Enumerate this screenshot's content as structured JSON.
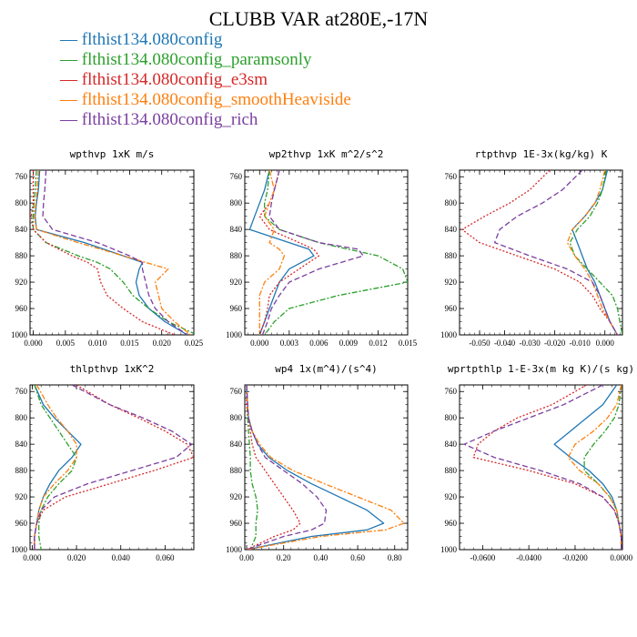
{
  "title": "CLUBB VAR at280E,-17N",
  "legend": [
    {
      "label": "flthist134.080config",
      "color": "#1f77b4"
    },
    {
      "label": "flthist134.080config_paramsonly",
      "color": "#2ca02c"
    },
    {
      "label": "flthist134.080config_e3sm",
      "color": "#d62728"
    },
    {
      "label": "flthist134.080config_smoothHeaviside",
      "color": "#ff7f0e"
    },
    {
      "label": "flthist134.080config_rich",
      "color": "#7b3fa0"
    }
  ],
  "chart_data": [
    {
      "type": "line",
      "title": "wpthvp  1xK m/s",
      "xlim": [
        -0.0005,
        0.025
      ],
      "ylim": [
        1000,
        750
      ],
      "xticks": [
        "0.000",
        "0.005",
        "0.010",
        "0.015",
        "0.020",
        "0.025"
      ],
      "yticks": [
        "760",
        "800",
        "840",
        "880",
        "920",
        "960",
        "1000"
      ],
      "y": [
        750,
        780,
        800,
        820,
        840,
        860,
        880,
        890,
        900,
        920,
        940,
        960,
        980,
        1000
      ],
      "series": [
        {
          "color": "#1f77b4",
          "dash": "none",
          "values": [
            0.001,
            0.0008,
            0.0005,
            0.0003,
            0.0005,
            0.008,
            0.014,
            0.017,
            0.0165,
            0.016,
            0.0165,
            0.018,
            0.0205,
            0.024
          ]
        },
        {
          "color": "#2ca02c",
          "dash": "6 2 2 2",
          "values": [
            0.0005,
            0.0003,
            0.0001,
            0.0,
            0.0,
            0.002,
            0.007,
            0.01,
            0.012,
            0.014,
            0.0155,
            0.018,
            0.021,
            0.0255
          ]
        },
        {
          "color": "#d62728",
          "dash": "2 2",
          "values": [
            0.0,
            0.0,
            0.0,
            -0.0003,
            0.0,
            0.002,
            0.006,
            0.0085,
            0.01,
            0.0105,
            0.0115,
            0.014,
            0.017,
            0.022
          ]
        },
        {
          "color": "#ff7f0e",
          "dash": "6 2 2 2",
          "values": [
            0.0008,
            0.0006,
            0.0004,
            0.0002,
            0.0005,
            0.007,
            0.014,
            0.0175,
            0.021,
            0.019,
            0.0195,
            0.02,
            0.022,
            0.0245
          ]
        },
        {
          "color": "#7b3fa0",
          "dash": "6 3",
          "values": [
            0.002,
            0.0018,
            0.0016,
            0.0015,
            0.003,
            0.01,
            0.015,
            0.017,
            0.017,
            0.0175,
            0.018,
            0.019,
            0.021,
            0.024
          ]
        }
      ]
    },
    {
      "type": "line",
      "title": "wp2thvp  1xK m^2/s^2",
      "xlim": [
        -0.0015,
        0.015
      ],
      "ylim": [
        1000,
        750
      ],
      "xticks": [
        "0.000",
        "0.003",
        "0.006",
        "0.009",
        "0.012",
        "0.015"
      ],
      "yticks": [
        "760",
        "800",
        "840",
        "880",
        "920",
        "960",
        "1000"
      ],
      "y": [
        750,
        780,
        800,
        820,
        840,
        860,
        870,
        880,
        900,
        920,
        940,
        960,
        980,
        1000
      ],
      "series": [
        {
          "color": "#1f77b4",
          "dash": "none",
          "values": [
            0.001,
            0.0005,
            0.0,
            -0.0005,
            -0.001,
            0.003,
            0.005,
            0.0055,
            0.003,
            0.002,
            0.0015,
            0.001,
            0.0005,
            0.0
          ]
        },
        {
          "color": "#2ca02c",
          "dash": "6 2 2 2",
          "values": [
            0.001,
            0.0008,
            0.0005,
            0.0005,
            0.002,
            0.006,
            0.009,
            0.012,
            0.0145,
            0.015,
            0.008,
            0.003,
            0.0015,
            0.0005
          ]
        },
        {
          "color": "#d62728",
          "dash": "2 2",
          "values": [
            0.002,
            0.0015,
            0.001,
            0.0,
            0.001,
            0.004,
            0.0055,
            0.006,
            0.004,
            0.002,
            0.001,
            0.0008,
            0.0005,
            0.0
          ]
        },
        {
          "color": "#ff7f0e",
          "dash": "6 2 2 2",
          "values": [
            0.001,
            0.0015,
            0.001,
            0.0005,
            0.0015,
            0.001,
            0.002,
            0.0025,
            0.002,
            0.0005,
            0.0,
            0.0,
            0.0,
            0.0
          ]
        },
        {
          "color": "#7b3fa0",
          "dash": "6 3",
          "values": [
            0.002,
            0.0015,
            0.0012,
            0.001,
            0.002,
            0.006,
            0.01,
            0.0105,
            0.006,
            0.003,
            0.002,
            0.0012,
            0.0008,
            0.0003
          ]
        }
      ]
    },
    {
      "type": "line",
      "title": "rtpthvp  1E-3x(kg/kg) K",
      "xlim": [
        -0.058,
        0.007
      ],
      "ylim": [
        1000,
        750
      ],
      "xticks": [
        "-0.050",
        "-0.040",
        "-0.030",
        "-0.020",
        "-0.010",
        "0.000"
      ],
      "yticks": [
        "760",
        "800",
        "840",
        "880",
        "920",
        "960",
        "1000"
      ],
      "y": [
        750,
        780,
        800,
        820,
        840,
        860,
        880,
        900,
        920,
        940,
        960,
        980,
        1000
      ],
      "series": [
        {
          "color": "#1f77b4",
          "dash": "none",
          "values": [
            0.001,
            -0.001,
            -0.004,
            -0.008,
            -0.013,
            -0.011,
            -0.009,
            -0.007,
            -0.004,
            -0.002,
            0.0,
            0.002,
            0.005
          ]
        },
        {
          "color": "#2ca02c",
          "dash": "6 2 2 2",
          "values": [
            0.0005,
            -0.001,
            -0.003,
            -0.006,
            -0.011,
            -0.014,
            -0.012,
            -0.007,
            -0.002,
            0.003,
            0.005,
            0.006,
            0.007
          ]
        },
        {
          "color": "#d62728",
          "dash": "2 2",
          "values": [
            -0.022,
            -0.03,
            -0.038,
            -0.048,
            -0.057,
            -0.05,
            -0.035,
            -0.02,
            -0.01,
            -0.005,
            -0.002,
            0.002,
            0.005
          ]
        },
        {
          "color": "#ff7f0e",
          "dash": "6 2 2 2",
          "values": [
            0.0,
            -0.002,
            -0.004,
            -0.008,
            -0.013,
            -0.015,
            -0.012,
            -0.008,
            -0.005,
            -0.003,
            -0.001,
            0.002,
            0.005
          ]
        },
        {
          "color": "#7b3fa0",
          "dash": "6 3",
          "values": [
            -0.009,
            -0.017,
            -0.025,
            -0.035,
            -0.042,
            -0.044,
            -0.03,
            -0.015,
            -0.005,
            -0.002,
            0.0,
            0.002,
            0.005
          ]
        }
      ]
    },
    {
      "type": "line",
      "title": "thlpthvp  1xK^2",
      "xlim": [
        -0.001,
        0.073
      ],
      "ylim": [
        1000,
        750
      ],
      "xticks": [
        "0.000",
        "0.020",
        "0.040",
        "0.060"
      ],
      "yticks": [
        "760",
        "800",
        "840",
        "880",
        "920",
        "960",
        "1000"
      ],
      "y": [
        750,
        780,
        800,
        820,
        840,
        860,
        880,
        900,
        920,
        940,
        960,
        980,
        1000
      ],
      "series": [
        {
          "color": "#1f77b4",
          "dash": "none",
          "values": [
            0.001,
            0.005,
            0.01,
            0.016,
            0.022,
            0.018,
            0.012,
            0.008,
            0.005,
            0.003,
            0.002,
            0.001,
            0.001
          ]
        },
        {
          "color": "#2ca02c",
          "dash": "6 2 2 2",
          "values": [
            0.001,
            0.004,
            0.008,
            0.012,
            0.016,
            0.02,
            0.018,
            0.012,
            0.007,
            0.004,
            0.003,
            0.003,
            0.004
          ]
        },
        {
          "color": "#d62728",
          "dash": "2 2",
          "values": [
            0.02,
            0.035,
            0.048,
            0.06,
            0.07,
            0.073,
            0.055,
            0.035,
            0.015,
            0.005,
            0.002,
            0.001,
            0.001
          ]
        },
        {
          "color": "#ff7f0e",
          "dash": "6 2 2 2",
          "values": [
            0.002,
            0.007,
            0.011,
            0.016,
            0.02,
            0.02,
            0.016,
            0.01,
            0.005,
            0.003,
            0.002,
            0.001,
            0.001
          ]
        },
        {
          "color": "#7b3fa0",
          "dash": "6 3",
          "values": [
            0.018,
            0.035,
            0.05,
            0.063,
            0.072,
            0.065,
            0.045,
            0.025,
            0.01,
            0.004,
            0.002,
            0.001,
            0.001
          ]
        }
      ]
    },
    {
      "type": "line",
      "title": "wp4  1x(m^4)/(s^4)",
      "xlim": [
        -0.01,
        0.87
      ],
      "ylim": [
        1000,
        750
      ],
      "xticks": [
        "0.00",
        "0.20",
        "0.40",
        "0.60",
        "0.80"
      ],
      "yticks": [
        "760",
        "800",
        "840",
        "880",
        "920",
        "960",
        "1000"
      ],
      "y": [
        750,
        780,
        800,
        820,
        840,
        860,
        880,
        900,
        920,
        940,
        960,
        970,
        980,
        1000
      ],
      "series": [
        {
          "color": "#1f77b4",
          "dash": "none",
          "values": [
            0.0,
            0.005,
            0.01,
            0.03,
            0.06,
            0.12,
            0.22,
            0.35,
            0.5,
            0.65,
            0.74,
            0.65,
            0.35,
            0.0
          ]
        },
        {
          "color": "#2ca02c",
          "dash": "6 2 2 2",
          "values": [
            0.0,
            0.002,
            0.005,
            0.01,
            0.015,
            0.02,
            0.02,
            0.03,
            0.05,
            0.06,
            0.05,
            0.05,
            0.05,
            0.02
          ]
        },
        {
          "color": "#d62728",
          "dash": "2 2",
          "values": [
            0.0,
            0.0,
            0.01,
            0.02,
            0.03,
            0.05,
            0.1,
            0.15,
            0.2,
            0.25,
            0.29,
            0.25,
            0.15,
            0.0
          ]
        },
        {
          "color": "#ff7f0e",
          "dash": "6 2 2 2",
          "values": [
            0.0,
            0.005,
            0.01,
            0.03,
            0.07,
            0.13,
            0.25,
            0.42,
            0.6,
            0.78,
            0.85,
            0.75,
            0.4,
            0.0
          ]
        },
        {
          "color": "#7b3fa0",
          "dash": "6 3",
          "values": [
            0.0,
            0.005,
            0.01,
            0.03,
            0.06,
            0.1,
            0.2,
            0.3,
            0.38,
            0.43,
            0.42,
            0.35,
            0.2,
            0.0
          ]
        }
      ]
    },
    {
      "type": "line",
      "title": "wprtpthlp  1-E-3x(m kg K)/(s kg)",
      "xlim": [
        -0.07,
        0.0005
      ],
      "ylim": [
        1000,
        750
      ],
      "xticks": [
        "-0.0600",
        "-0.0400",
        "-0.0200",
        "0.0000"
      ],
      "yticks": [
        "760",
        "800",
        "840",
        "880",
        "920",
        "960",
        "1000"
      ],
      "y": [
        750,
        780,
        800,
        820,
        840,
        860,
        880,
        900,
        920,
        940,
        960,
        980,
        1000
      ],
      "series": [
        {
          "color": "#1f77b4",
          "dash": "none",
          "values": [
            -0.002,
            -0.008,
            -0.015,
            -0.022,
            -0.029,
            -0.022,
            -0.014,
            -0.008,
            -0.004,
            -0.002,
            -0.001,
            0.0,
            0.0
          ]
        },
        {
          "color": "#2ca02c",
          "dash": "6 2 2 2",
          "values": [
            0.0,
            -0.001,
            -0.003,
            -0.007,
            -0.012,
            -0.016,
            -0.016,
            -0.01,
            -0.005,
            -0.002,
            -0.001,
            0.0,
            0.0
          ]
        },
        {
          "color": "#d62728",
          "dash": "2 2",
          "values": [
            -0.015,
            -0.03,
            -0.045,
            -0.055,
            -0.062,
            -0.064,
            -0.04,
            -0.02,
            -0.008,
            -0.003,
            -0.001,
            0.0,
            0.0
          ]
        },
        {
          "color": "#ff7f0e",
          "dash": "6 2 2 2",
          "values": [
            0.0,
            -0.002,
            -0.006,
            -0.012,
            -0.02,
            -0.023,
            -0.018,
            -0.01,
            -0.005,
            -0.002,
            -0.001,
            0.0,
            0.0
          ]
        },
        {
          "color": "#7b3fa0",
          "dash": "6 3",
          "values": [
            -0.008,
            -0.025,
            -0.04,
            -0.055,
            -0.068,
            -0.055,
            -0.035,
            -0.018,
            -0.008,
            -0.003,
            -0.001,
            0.0,
            0.0
          ]
        }
      ]
    }
  ]
}
